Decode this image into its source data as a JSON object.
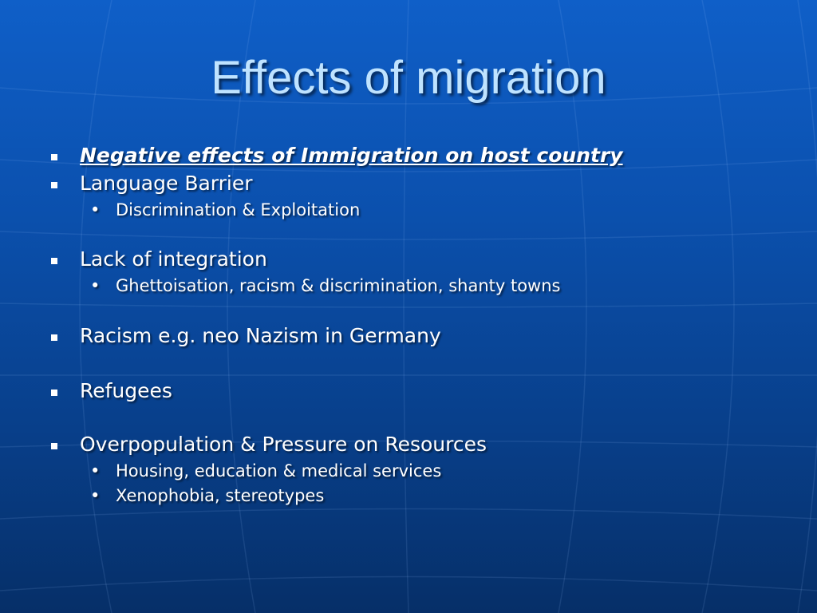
{
  "slide": {
    "title": "Effects of migration",
    "bullets": [
      {
        "text": "Negative effects of Immigration on host country"
      },
      {
        "text": "Language Barrier"
      },
      {
        "text": "Discrimination & Exploitation"
      },
      {
        "text": "Lack of integration"
      },
      {
        "text": "Ghettoisation, racism & discrimination, shanty towns"
      },
      {
        "text": "Racism e.g. neo Nazism in Germany"
      },
      {
        "text": "Refugees"
      },
      {
        "text": "Overpopulation & Pressure on Resources"
      },
      {
        "text": "Housing, education & medical services"
      },
      {
        "text": "Xenophobia, stereotypes"
      }
    ]
  },
  "colors": {
    "background_top": "#0f5fc8",
    "background_bottom": "#062f68",
    "title": "#bfe3ff",
    "body_text": "#ffffff"
  }
}
